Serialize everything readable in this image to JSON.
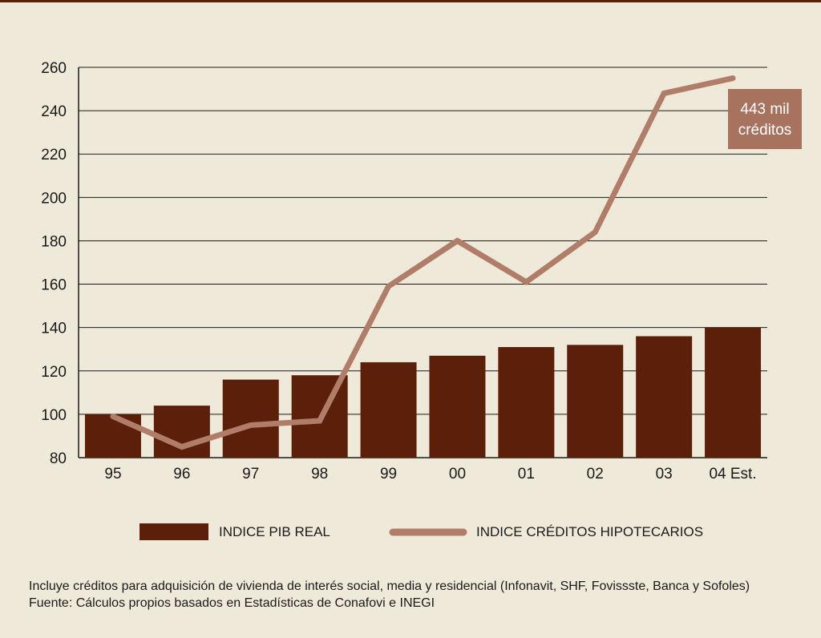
{
  "chart_data": {
    "type": "bar",
    "categories": [
      "95",
      "96",
      "97",
      "98",
      "99",
      "00",
      "01",
      "02",
      "03",
      "04 Est."
    ],
    "series": [
      {
        "name": "INDICE PIB REAL",
        "type": "bar",
        "color": "#5c1f0a",
        "values": [
          100,
          104,
          116,
          118,
          124,
          127,
          131,
          132,
          136,
          140
        ]
      },
      {
        "name": "INDICE CRÉDITOS HIPOTECARIOS",
        "type": "line",
        "color": "#b07d68",
        "values": [
          99,
          85,
          95,
          97,
          159,
          180,
          161,
          184,
          248,
          255
        ]
      }
    ],
    "ylim": [
      80,
      260
    ],
    "yticks": [
      "80",
      "100",
      "120",
      "140",
      "160",
      "180",
      "200",
      "220",
      "240",
      "260"
    ],
    "grid": true,
    "legend_position": "bottom",
    "annotation": {
      "line1": "443 mil",
      "line2": "créditos"
    }
  },
  "footnotes": {
    "note": "Incluye créditos para adquisición de vivienda de interés social, media y residencial (Infonavit, SHF, Fovissste, Banca y Sofoles)",
    "source": "Fuente: Cálculos propios basados en Estadísticas de Conafovi e INEGI"
  },
  "colors": {
    "background": "#efe9da",
    "bar": "#5c1f0a",
    "line": "#b07d68",
    "grid": "#1a1a1a"
  }
}
